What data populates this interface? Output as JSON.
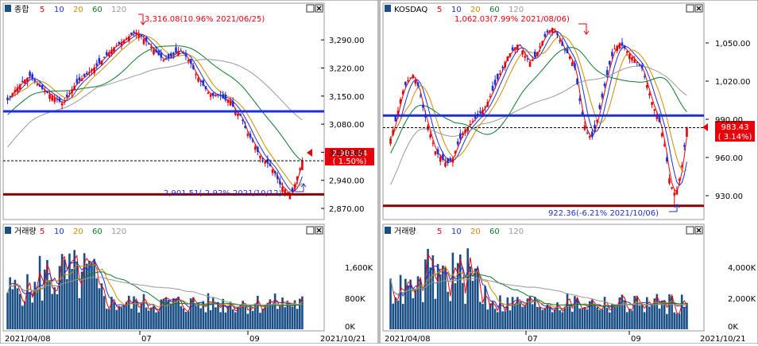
{
  "panels": [
    {
      "id": "kospi",
      "index_label": "종합",
      "volume_label": "거래량",
      "ma_labels": [
        "5",
        "10",
        "20",
        "60",
        "120"
      ],
      "price_ticks": [
        3290,
        3220,
        3150,
        3080,
        3010,
        2940,
        2870
      ],
      "price_tick_labels": [
        "3,290.00",
        "3,220.00",
        "3,150.00",
        "3,080.00",
        "3,010.00",
        "2,940.00",
        "2,870.00"
      ],
      "volume_tick_labels": [
        "1,600K",
        "800K",
        "0K"
      ],
      "dates": [
        "2021/04/08",
        "07",
        "09",
        "2021/10/21"
      ],
      "current_label": "2,988.64",
      "change_label": "( 1.50%)",
      "high_annotation": "3,316.08(10.96% 2021/06/25)",
      "low_annotation": "2,901.51(-2.92% 2021/10/12)"
    },
    {
      "id": "kosdaq",
      "index_label": "KOSDAQ",
      "volume_label": "거래량",
      "ma_labels": [
        "5",
        "10",
        "20",
        "60",
        "120"
      ],
      "price_ticks": [
        1050,
        1020,
        990,
        960,
        930
      ],
      "price_tick_labels": [
        "1,050.00",
        "1,020.00",
        "990.00",
        "960.00",
        "930.00"
      ],
      "volume_tick_labels": [
        "4,000K",
        "2,000K",
        "0K"
      ],
      "dates": [
        "2021/04/08",
        "07",
        "09",
        "2021/10/21"
      ],
      "current_label": "983.43",
      "change_label": "( 3.14%)",
      "high_annotation": "1,062.03(7.99% 2021/08/06)",
      "low_annotation": "922.36(-6.21% 2021/10/06)"
    }
  ],
  "colors": {
    "up": "#e8000b",
    "down": "#1f2fd6",
    "ma5": "#e8000b",
    "ma10": "#1f2fd6",
    "ma20": "#d28a00",
    "ma60": "#0a7a2a",
    "ma120": "#999999",
    "volume_bar": "#1a4f86",
    "support_line": "#8b0000",
    "resistance_line": "#1f2fd6"
  },
  "chart_data": [
    {
      "type": "candlestick",
      "title": "종합",
      "x_range": [
        "2021/04/08",
        "2021/10/21"
      ],
      "ylim": [
        2870,
        3330
      ],
      "close_series_approx": [
        3140,
        3160,
        3175,
        3190,
        3200,
        3185,
        3170,
        3160,
        3150,
        3140,
        3130,
        3155,
        3175,
        3190,
        3200,
        3215,
        3225,
        3240,
        3255,
        3270,
        3280,
        3290,
        3300,
        3310,
        3300,
        3285,
        3270,
        3255,
        3240,
        3245,
        3255,
        3265,
        3250,
        3230,
        3200,
        3180,
        3160,
        3150,
        3155,
        3140,
        3140,
        3110,
        3100,
        3060,
        3040,
        3010,
        2990,
        2980,
        2960,
        2930,
        2915,
        2900,
        2945,
        2988.64
      ],
      "high": {
        "value": 3316.08,
        "date": "2021/06/25",
        "change_pct": 10.96
      },
      "low": {
        "value": 2901.51,
        "date": "2021/10/12",
        "change_pct": -2.92
      },
      "last": {
        "value": 2988.64,
        "change_pct": 1.5
      },
      "horizontal_lines": [
        3112,
        2905
      ],
      "moving_averages": [
        "5",
        "10",
        "20",
        "60",
        "120"
      ]
    },
    {
      "type": "candlestick",
      "title": "KOSDAQ",
      "x_range": [
        "2021/04/08",
        "2021/10/21"
      ],
      "ylim": [
        920,
        1065
      ],
      "close_series_approx": [
        975,
        990,
        1010,
        1020,
        1025,
        1015,
        995,
        980,
        965,
        960,
        955,
        958,
        970,
        980,
        985,
        990,
        995,
        1000,
        1010,
        1020,
        1030,
        1040,
        1045,
        1050,
        1040,
        1035,
        1040,
        1050,
        1058,
        1062,
        1055,
        1045,
        1040,
        1030,
        1000,
        980,
        975,
        990,
        1010,
        1030,
        1045,
        1050,
        1045,
        1040,
        1035,
        1030,
        1015,
        1000,
        990,
        970,
        940,
        930,
        950,
        983.43
      ],
      "high": {
        "value": 1062.03,
        "date": "2021/08/06",
        "change_pct": 7.99
      },
      "low": {
        "value": 922.36,
        "date": "2021/10/06",
        "change_pct": -6.21
      },
      "last": {
        "value": 983.43,
        "change_pct": 3.14
      },
      "horizontal_lines": [
        993,
        922
      ],
      "moving_averages": [
        "5",
        "10",
        "20",
        "60",
        "120"
      ]
    }
  ]
}
